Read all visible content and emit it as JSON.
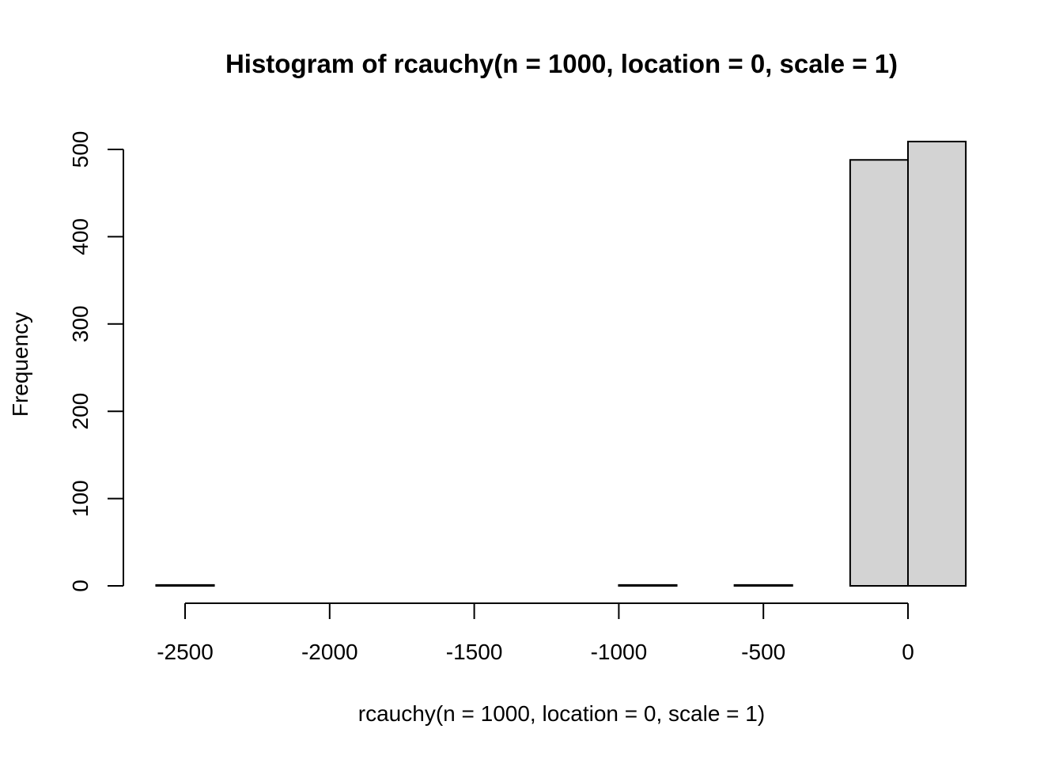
{
  "chart_data": {
    "type": "bar",
    "title": "Histogram of rcauchy(n = 1000, location = 0, scale = 1)",
    "xlabel": "rcauchy(n = 1000, location = 0, scale = 1)",
    "ylabel": "Frequency",
    "xlim": [
      -2600,
      200
    ],
    "ylim": [
      0,
      510
    ],
    "x_ticks": [
      -2500,
      -2000,
      -1500,
      -1000,
      -500,
      0
    ],
    "x_tick_labels": [
      "-2500",
      "-2000",
      "-1500",
      "-1000",
      "-500",
      "0"
    ],
    "y_ticks": [
      0,
      100,
      200,
      300,
      400,
      500
    ],
    "y_tick_labels": [
      "0",
      "100",
      "200",
      "300",
      "400",
      "500"
    ],
    "bar_fill": "#d3d3d3",
    "bar_stroke": "#000000",
    "bins": [
      {
        "from": -2600,
        "to": -2400,
        "count": 1
      },
      {
        "from": -2400,
        "to": -2200,
        "count": 0
      },
      {
        "from": -2200,
        "to": -2000,
        "count": 0
      },
      {
        "from": -2000,
        "to": -1800,
        "count": 0
      },
      {
        "from": -1800,
        "to": -1600,
        "count": 0
      },
      {
        "from": -1600,
        "to": -1400,
        "count": 0
      },
      {
        "from": -1400,
        "to": -1200,
        "count": 0
      },
      {
        "from": -1200,
        "to": -1000,
        "count": 0
      },
      {
        "from": -1000,
        "to": -800,
        "count": 1
      },
      {
        "from": -800,
        "to": -600,
        "count": 0
      },
      {
        "from": -600,
        "to": -400,
        "count": 1
      },
      {
        "from": -400,
        "to": -200,
        "count": 0
      },
      {
        "from": -200,
        "to": 0,
        "count": 488
      },
      {
        "from": 0,
        "to": 200,
        "count": 509
      }
    ]
  }
}
